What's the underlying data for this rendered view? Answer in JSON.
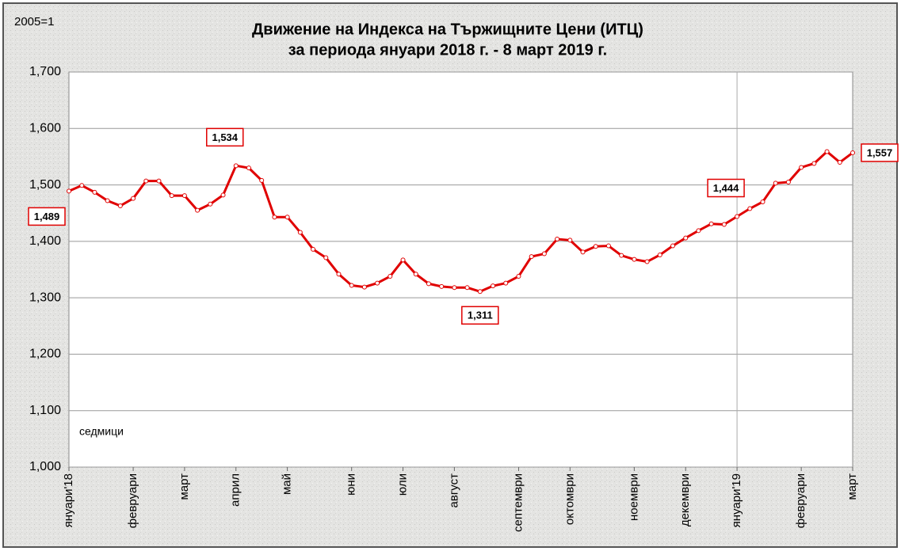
{
  "chart_data": {
    "type": "line",
    "title": "Движение на Индекса на Тържищните Цени (ИТЦ)",
    "subtitle": "за периода януари 2018 г. -   8 март 2019 г.",
    "base_note": "2005=1",
    "x_axis_note": "седмици",
    "x": [
      0,
      1,
      2,
      3,
      4,
      5,
      6,
      7,
      8,
      9,
      10,
      11,
      12,
      13,
      14,
      15,
      16,
      17,
      18,
      19,
      20,
      21,
      22,
      23,
      24,
      25,
      26,
      27,
      28,
      29,
      30,
      31,
      32,
      33,
      34,
      35,
      36,
      37,
      38,
      39,
      40,
      41,
      42,
      43,
      44,
      45,
      46,
      47,
      48,
      49,
      50,
      51,
      52,
      53,
      54,
      55,
      56,
      57,
      58,
      59,
      60,
      61
    ],
    "series": [
      {
        "name": "ИТЦ",
        "color": "#e00000",
        "values": [
          1.489,
          1.499,
          1.487,
          1.472,
          1.463,
          1.476,
          1.507,
          1.507,
          1.481,
          1.481,
          1.455,
          1.466,
          1.482,
          1.534,
          1.53,
          1.508,
          1.443,
          1.443,
          1.416,
          1.386,
          1.371,
          1.342,
          1.322,
          1.319,
          1.326,
          1.338,
          1.367,
          1.342,
          1.325,
          1.32,
          1.318,
          1.318,
          1.311,
          1.321,
          1.326,
          1.338,
          1.373,
          1.378,
          1.404,
          1.402,
          1.381,
          1.391,
          1.392,
          1.375,
          1.368,
          1.364,
          1.376,
          1.392,
          1.406,
          1.419,
          1.431,
          1.43,
          1.444,
          1.458,
          1.47,
          1.503,
          1.505,
          1.531,
          1.538,
          1.559,
          1.54,
          1.557
        ],
        "value_labels": [
          "1,489",
          null,
          null,
          null,
          null,
          null,
          null,
          null,
          null,
          null,
          null,
          null,
          null,
          "1,534",
          null,
          null,
          null,
          null,
          null,
          null,
          null,
          null,
          null,
          null,
          null,
          null,
          null,
          null,
          null,
          null,
          null,
          null,
          "1,311",
          null,
          null,
          null,
          null,
          null,
          null,
          null,
          null,
          null,
          null,
          null,
          null,
          null,
          null,
          null,
          null,
          null,
          null,
          null,
          "1,444",
          null,
          null,
          null,
          null,
          null,
          null,
          null,
          null,
          "1,557"
        ]
      }
    ],
    "xlim": [
      0,
      61
    ],
    "xticks": [
      {
        "value": 0,
        "label": "януари'18"
      },
      {
        "value": 5,
        "label": "февруари"
      },
      {
        "value": 9,
        "label": "март"
      },
      {
        "value": 13,
        "label": "април"
      },
      {
        "value": 17,
        "label": "май"
      },
      {
        "value": 22,
        "label": "юни"
      },
      {
        "value": 26,
        "label": "юли"
      },
      {
        "value": 30,
        "label": "август"
      },
      {
        "value": 35,
        "label": "септември"
      },
      {
        "value": 39,
        "label": "октомври"
      },
      {
        "value": 44,
        "label": "ноември"
      },
      {
        "value": 48,
        "label": "декември"
      },
      {
        "value": 52,
        "label": "януари'19"
      },
      {
        "value": 57,
        "label": "февруари"
      },
      {
        "value": 61,
        "label": "март"
      }
    ],
    "ylim": [
      1.0,
      1.7
    ],
    "yticks": [
      {
        "value": 1.0,
        "label": "1,000"
      },
      {
        "value": 1.1,
        "label": "1,100"
      },
      {
        "value": 1.2,
        "label": "1,200"
      },
      {
        "value": 1.3,
        "label": "1,300"
      },
      {
        "value": 1.4,
        "label": "1,400"
      },
      {
        "value": 1.5,
        "label": "1,500"
      },
      {
        "value": 1.6,
        "label": "1,600"
      },
      {
        "value": 1.7,
        "label": "1,700"
      }
    ],
    "reference_x": 52,
    "grid": true
  }
}
